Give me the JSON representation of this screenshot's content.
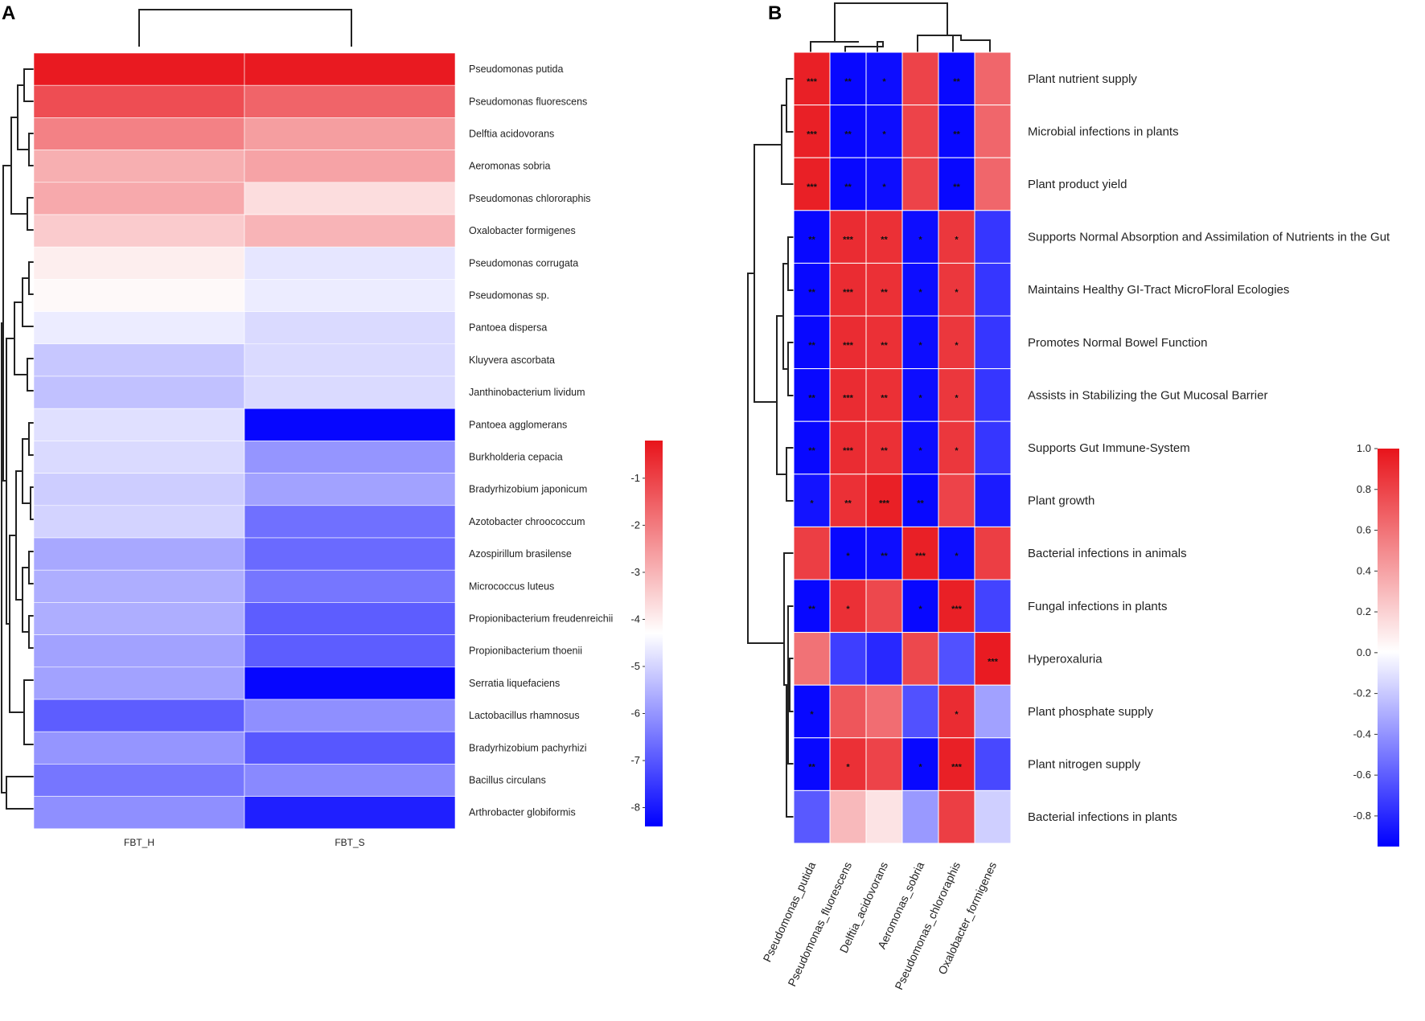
{
  "chart_data": [
    {
      "panel": "A",
      "type": "heatmap",
      "columns": [
        "FBT_H",
        "FBT_S"
      ],
      "rows": [
        "Pseudomonas putida",
        "Pseudomonas fluorescens",
        "Delftia acidovorans",
        "Aeromonas sobria",
        "Pseudomonas chlororaphis",
        "Oxalobacter formigenes",
        "Pseudomonas corrugata",
        "Pseudomonas sp.",
        "Pantoea dispersa",
        "Kluyvera ascorbata",
        "Janthinobacterium lividum",
        "Pantoea agglomerans",
        "Burkholderia cepacia",
        "Bradyrhizobium japonicum",
        "Azotobacter chroococcum",
        "Azospirillum brasilense",
        "Micrococcus luteus",
        "Propionibacterium freudenreichii",
        "Propionibacterium thoenii",
        "Serratia liquefaciens",
        "Lactobacillus rhamnosus",
        "Bradyrhizobium pachyrhizi",
        "Bacillus circulans",
        "Arthrobacter globiformis"
      ],
      "values": [
        [
          -0.3,
          -0.3
        ],
        [
          -1.2,
          -1.6
        ],
        [
          -2.1,
          -2.6
        ],
        [
          -2.9,
          -2.7
        ],
        [
          -2.8,
          -3.7
        ],
        [
          -3.4,
          -3.0
        ],
        [
          -4.0,
          -4.7
        ],
        [
          -4.2,
          -4.6
        ],
        [
          -4.6,
          -4.9
        ],
        [
          -5.2,
          -4.9
        ],
        [
          -5.3,
          -4.9
        ],
        [
          -4.8,
          -8.3
        ],
        [
          -4.9,
          -6.0
        ],
        [
          -5.1,
          -5.8
        ],
        [
          -5.0,
          -6.6
        ],
        [
          -5.7,
          -6.7
        ],
        [
          -5.6,
          -6.5
        ],
        [
          -5.6,
          -6.9
        ],
        [
          -5.8,
          -6.9
        ],
        [
          -5.8,
          -8.3
        ],
        [
          -6.9,
          -6.1
        ],
        [
          -6.0,
          -7.0
        ],
        [
          -6.5,
          -6.2
        ],
        [
          -6.1,
          -7.9
        ]
      ],
      "legend": {
        "ticks": [
          -1,
          -2,
          -3,
          -4,
          -5,
          -6,
          -7,
          -8
        ],
        "range": [
          -8.4,
          -0.2
        ],
        "low_color": "#0000ff",
        "mid_color": "#ffffff",
        "high_color": "#e8141b"
      }
    },
    {
      "panel": "B",
      "type": "heatmap",
      "columns": [
        "Pseudomonas_putida",
        "Pseudomonas_fluorescens",
        "Delftia_acidovorans",
        "Aeromonas_sobria",
        "Pseudomonas_chlororaphis",
        "Oxalobacter_formigenes"
      ],
      "rows": [
        "Plant nutrient supply",
        "Microbial infections in plants",
        "Plant product yield",
        "Supports Normal Absorption and Assimilation of Nutrients in the Gut",
        "Maintains Healthy GI-Tract MicroFloral Ecologies",
        "Promotes Normal Bowel Function",
        "Assists in Stabilizing the Gut Mucosal Barrier",
        "Supports Gut Immune-System",
        "Plant growth",
        "Bacterial infections in animals",
        "Fungal infections in plants",
        "Hyperoxaluria",
        "Plant phosphate supply",
        "Plant nitrogen supply",
        "Bacterial infections in plants"
      ],
      "values": [
        [
          0.95,
          -0.92,
          -0.9,
          0.8,
          -0.92,
          0.65
        ],
        [
          0.95,
          -0.92,
          -0.9,
          0.8,
          -0.92,
          0.65
        ],
        [
          0.95,
          -0.92,
          -0.9,
          0.8,
          -0.92,
          0.65
        ],
        [
          -0.92,
          0.9,
          0.88,
          -0.9,
          0.85,
          -0.75
        ],
        [
          -0.92,
          0.9,
          0.88,
          -0.9,
          0.85,
          -0.75
        ],
        [
          -0.92,
          0.9,
          0.88,
          -0.9,
          0.85,
          -0.75
        ],
        [
          -0.92,
          0.9,
          0.88,
          -0.9,
          0.85,
          -0.75
        ],
        [
          -0.92,
          0.9,
          0.88,
          -0.9,
          0.85,
          -0.75
        ],
        [
          -0.88,
          0.88,
          0.95,
          -0.92,
          0.8,
          -0.85
        ],
        [
          0.82,
          -0.92,
          -0.9,
          0.95,
          -0.9,
          0.82
        ],
        [
          -0.92,
          0.88,
          0.78,
          -0.92,
          0.95,
          -0.7
        ],
        [
          0.6,
          -0.72,
          -0.8,
          0.78,
          -0.65,
          0.97
        ],
        [
          -0.92,
          0.72,
          0.62,
          -0.65,
          0.9,
          -0.35
        ],
        [
          -0.92,
          0.88,
          0.8,
          -0.92,
          0.95,
          -0.68
        ],
        [
          -0.62,
          0.3,
          0.12,
          -0.38,
          0.82,
          -0.18
        ]
      ],
      "significance": [
        [
          "***",
          "**",
          "*",
          "",
          "**",
          ""
        ],
        [
          "***",
          "**",
          "*",
          "",
          "**",
          ""
        ],
        [
          "***",
          "**",
          "*",
          "",
          "**",
          ""
        ],
        [
          "**",
          "***",
          "**",
          "*",
          "*",
          ""
        ],
        [
          "**",
          "***",
          "**",
          "*",
          "*",
          ""
        ],
        [
          "**",
          "***",
          "**",
          "*",
          "*",
          ""
        ],
        [
          "**",
          "***",
          "**",
          "*",
          "*",
          ""
        ],
        [
          "**",
          "***",
          "**",
          "*",
          "*",
          ""
        ],
        [
          "*",
          "**",
          "***",
          "**",
          "",
          ""
        ],
        [
          "",
          "*",
          "**",
          "***",
          "*",
          ""
        ],
        [
          "**",
          "*",
          "",
          "*",
          "***",
          ""
        ],
        [
          "",
          "",
          "",
          "",
          "",
          "***"
        ],
        [
          "*",
          "",
          "",
          "",
          "*",
          ""
        ],
        [
          "**",
          "*",
          "",
          "*",
          "***",
          ""
        ],
        [
          "",
          "",
          "",
          "",
          "",
          ""
        ]
      ],
      "legend": {
        "ticks": [
          "1.0",
          "0.8",
          "0.6",
          "0.4",
          "0.2",
          "0.0",
          "-0.2",
          "-0.4",
          "-0.6",
          "-0.8"
        ],
        "range": [
          -0.95,
          1.0
        ],
        "low_color": "#0000ff",
        "mid_color": "#ffffff",
        "high_color": "#e8141b"
      }
    }
  ],
  "labels": {
    "panel_a": "A",
    "panel_b": "B"
  }
}
